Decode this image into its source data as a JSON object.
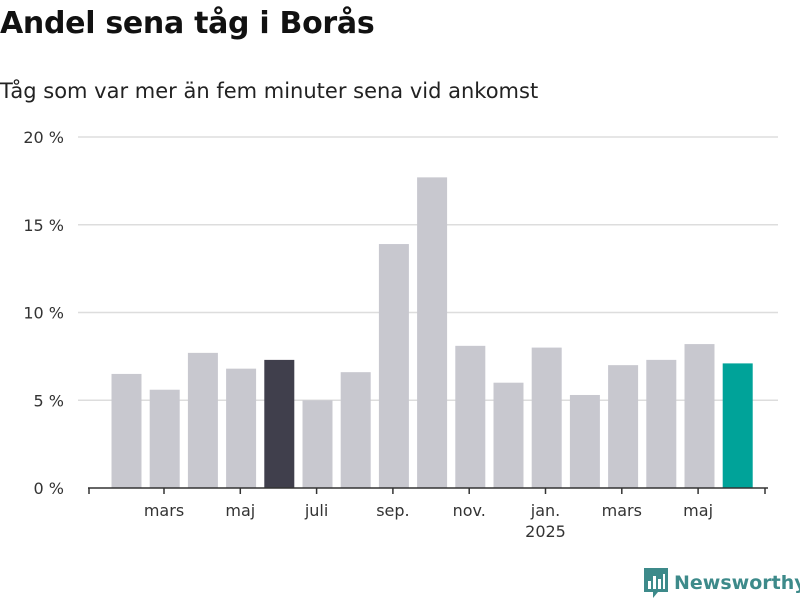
{
  "chart_data": {
    "type": "bar",
    "title": "Andel sena tåg i Borås",
    "subtitle": "Tåg som var mer än fem minuter sena vid ankomst",
    "y_ticks": [
      "0 %",
      "5 %",
      "10 %",
      "15 %",
      "20 %"
    ],
    "ylim": [
      0,
      20
    ],
    "grid": true,
    "x_tick_labels": [
      "mars",
      "maj",
      "juli",
      "sep.",
      "nov.",
      "jan.",
      "mars",
      "maj"
    ],
    "x_year_label": "2025",
    "values": [
      6.5,
      5.6,
      7.7,
      6.8,
      7.3,
      5.0,
      6.6,
      13.9,
      17.7,
      8.1,
      6.0,
      8.0,
      5.3,
      7.0,
      7.3,
      8.2,
      7.1
    ],
    "colors": {
      "default": "#c8c8cf",
      "highlight_previous": "#403f4c",
      "highlight_latest": "#00a399",
      "grid": "#dddddd",
      "axis": "#333333"
    },
    "highlight_previous_index": 4,
    "highlight_latest_index": 16
  },
  "brand": {
    "name": "Newsworthy",
    "icon": "bar-chart-logo-icon"
  }
}
